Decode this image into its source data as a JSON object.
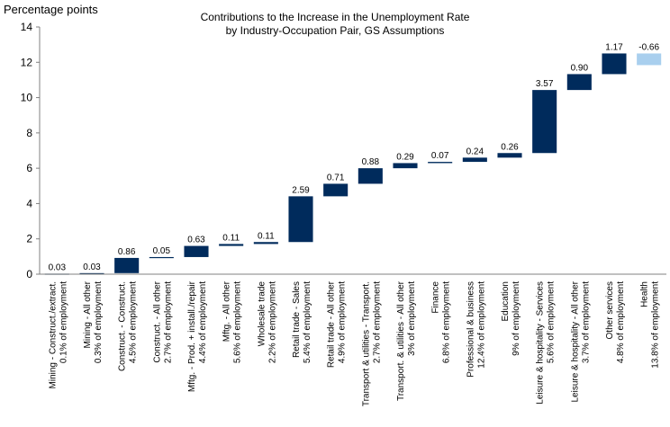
{
  "chart_data": {
    "type": "bar",
    "subtype": "waterfall",
    "title": "Contributions to the Increase in the Unemployment Rate",
    "subtitle": "by Industry-Occupation Pair, GS Assumptions",
    "ylabel": "Percentage points",
    "xlabel": "",
    "ylim": [
      0,
      14
    ],
    "yticks": [
      0,
      2,
      4,
      6,
      8,
      10,
      12,
      14
    ],
    "grid": false,
    "colors": {
      "positive": "#002b5c",
      "negative": "#a9cfee",
      "axis": "#808080"
    },
    "categories": [
      {
        "line1": "Mining - Construct./extract.",
        "line2": "0.1% of employment"
      },
      {
        "line1": "Mining - All other",
        "line2": "0.3% of employment"
      },
      {
        "line1": "Construct. - Construct.",
        "line2": "4.5% of employment"
      },
      {
        "line1": "Construct. - All other",
        "line2": "2.7% of employment"
      },
      {
        "line1": "Mftg. - Prod. + install./repair",
        "line2": "4.4% of employment"
      },
      {
        "line1": "Mftg. - All other",
        "line2": "5.6% of employment"
      },
      {
        "line1": "Wholesale trade",
        "line2": "2.2% of employment"
      },
      {
        "line1": "Retail trade - Sales",
        "line2": "5.4% of employment"
      },
      {
        "line1": "Retail trade - All other",
        "line2": "4.9% of employment"
      },
      {
        "line1": "Transport & utilities - Transport.",
        "line2": "2.7% of employment"
      },
      {
        "line1": "Transport. & utilities - All other",
        "line2": "3% of employment"
      },
      {
        "line1": "Finance",
        "line2": "6.8% of employment"
      },
      {
        "line1": "Professional & business",
        "line2": "12.4% of employment"
      },
      {
        "line1": "Education",
        "line2": "9% of employment"
      },
      {
        "line1": "Leisure & hospitality - Services",
        "line2": "5.6% of employment"
      },
      {
        "line1": "Leisure & hospitality - All other",
        "line2": "3.7% of employment"
      },
      {
        "line1": "Other services",
        "line2": "4.8% of employment"
      },
      {
        "line1": "Health",
        "line2": "13.8% of employment"
      }
    ],
    "values": [
      0.03,
      0.03,
      0.86,
      0.05,
      0.63,
      0.11,
      0.11,
      2.59,
      0.71,
      0.88,
      0.29,
      0.07,
      0.24,
      0.26,
      3.57,
      0.9,
      1.17,
      -0.66
    ],
    "value_labels": [
      "0.03",
      "0.03",
      "0.86",
      "0.05",
      "0.63",
      "0.11",
      "0.11",
      "2.59",
      "0.71",
      "0.88",
      "0.29",
      "0.07",
      "0.24",
      "0.26",
      "3.57",
      "0.90",
      "1.17",
      "-0.66"
    ]
  }
}
